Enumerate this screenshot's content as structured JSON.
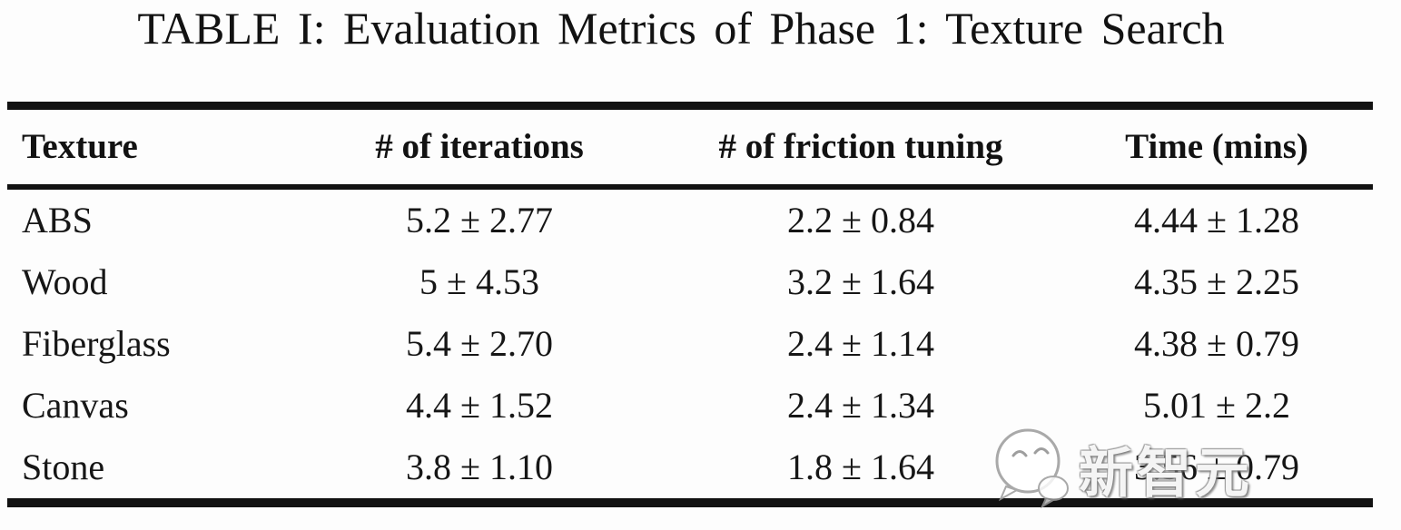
{
  "title": "TABLE I: Evaluation Metrics of Phase 1: Texture Search",
  "table": {
    "columns": [
      {
        "label": "Texture",
        "align": "left"
      },
      {
        "label": "# of iterations",
        "align": "center"
      },
      {
        "label": "# of friction tuning",
        "align": "center"
      },
      {
        "label": "Time (mins)",
        "align": "center"
      }
    ],
    "rows": [
      [
        "ABS",
        "5.2 ± 2.77",
        "2.2 ± 0.84",
        "4.44 ± 1.28"
      ],
      [
        "Wood",
        "5 ± 4.53",
        "3.2 ± 1.64",
        "4.35 ± 2.25"
      ],
      [
        "Fiberglass",
        "5.4 ± 2.70",
        "2.4 ± 1.14",
        "4.38 ± 0.79"
      ],
      [
        "Canvas",
        "4.4 ± 1.52",
        "2.4 ± 1.34",
        "5.01 ± 2.2"
      ],
      [
        "Stone",
        "3.8 ± 1.10",
        "1.8 ± 1.64",
        "3.56 ± 0.79"
      ]
    ]
  },
  "chart_data": {
    "type": "table",
    "title": "TABLE I: Evaluation Metrics of Phase 1: Texture Search",
    "columns": [
      "Texture",
      "# of iterations",
      "# of friction tuning",
      "Time (mins)"
    ],
    "rows": [
      {
        "texture": "ABS",
        "iterations_mean": 5.2,
        "iterations_sd": 2.77,
        "friction_mean": 2.2,
        "friction_sd": 0.84,
        "time_mean": 4.44,
        "time_sd": 1.28
      },
      {
        "texture": "Wood",
        "iterations_mean": 5,
        "iterations_sd": 4.53,
        "friction_mean": 3.2,
        "friction_sd": 1.64,
        "time_mean": 4.35,
        "time_sd": 2.25
      },
      {
        "texture": "Fiberglass",
        "iterations_mean": 5.4,
        "iterations_sd": 2.7,
        "friction_mean": 2.4,
        "friction_sd": 1.14,
        "time_mean": 4.38,
        "time_sd": 0.79
      },
      {
        "texture": "Canvas",
        "iterations_mean": 4.4,
        "iterations_sd": 1.52,
        "friction_mean": 2.4,
        "friction_sd": 1.34,
        "time_mean": 5.01,
        "time_sd": 2.2
      },
      {
        "texture": "Stone",
        "iterations_mean": 3.8,
        "iterations_sd": 1.1,
        "friction_mean": 1.8,
        "friction_sd": 1.64,
        "time_mean": 3.56,
        "time_sd": 0.79
      }
    ]
  },
  "watermark": {
    "text": "新智元",
    "logo": "wechat-bubble-face-icon"
  },
  "colors": {
    "text": "#161616",
    "rule": "#121212",
    "background": "#fdfdfd",
    "watermark_text": "#ffffff",
    "watermark_outline": "#787878"
  }
}
